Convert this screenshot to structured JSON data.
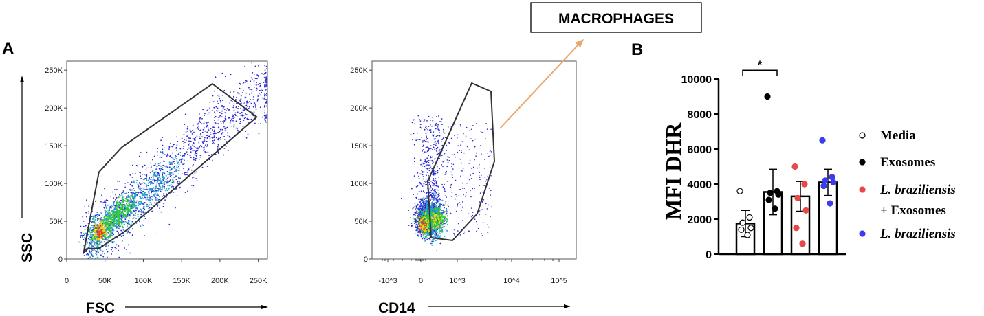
{
  "panels": {
    "a_label": "A",
    "b_label": "B"
  },
  "callout": {
    "label": "MACROPHAGES"
  },
  "chart_data": [
    {
      "type": "scatter",
      "panel": "A",
      "xlabel": "FSC",
      "ylabel": "SSC",
      "xlim": [
        0,
        262
      ],
      "ylim": [
        0,
        262
      ],
      "x_ticks": [
        "0",
        "50K",
        "100K",
        "150K",
        "200K",
        "250K"
      ],
      "y_ticks": [
        "0",
        "50K",
        "100K",
        "150K",
        "200K",
        "250K"
      ],
      "gate_polygon_k": [
        [
          22,
          8
        ],
        [
          42,
          115
        ],
        [
          72,
          148
        ],
        [
          190,
          232
        ],
        [
          248,
          188
        ],
        [
          78,
          38
        ],
        [
          42,
          14
        ],
        [
          28,
          14
        ]
      ],
      "colors": {
        "sparse": "#2a2ad8",
        "mid": "#22a8c8",
        "dense": "#32c832",
        "peak": "#f4d21e",
        "core": "#e83a1e",
        "gate": "#333333"
      }
    },
    {
      "type": "scatter",
      "panel": "A",
      "xlabel": "CD14",
      "x_ticks": [
        "-10^3",
        "0",
        "10^3",
        "10^4",
        "10^5"
      ],
      "y_ticks": [
        "0",
        "50K",
        "100K",
        "150K",
        "200K",
        "250K"
      ],
      "ylim": [
        0,
        262
      ],
      "gate_label": "MACROPHAGES"
    },
    {
      "type": "bar",
      "panel": "B",
      "ylabel": "MFI DHR",
      "ylim": [
        0,
        10000
      ],
      "y_ticks": [
        "0",
        "2000",
        "4000",
        "6000",
        "8000",
        "10000"
      ],
      "categories": [
        "Media",
        "Exosomes",
        "L. braziliensis + Exosomes",
        "L. braziliensis"
      ],
      "values": [
        1750,
        3550,
        3300,
        4100
      ],
      "errors": [
        750,
        1300,
        850,
        750
      ],
      "points": [
        [
          3600,
          2100,
          1800,
          1500,
          1400,
          1100
        ],
        [
          9000,
          3600,
          3500,
          3400,
          3100,
          2600
        ],
        [
          5000,
          4000,
          3200,
          2500,
          1500,
          600
        ],
        [
          6500,
          4400,
          4200,
          4100,
          3900,
          2900
        ]
      ],
      "point_colors": [
        "#ffffff",
        "#000000",
        "#e84848",
        "#3c3ce8"
      ],
      "significance": {
        "label": "*",
        "between": [
          0,
          1
        ]
      },
      "legend": [
        {
          "label": "Media",
          "color": "#ffffff",
          "hollow": true
        },
        {
          "label": "Exosomes",
          "color": "#000000"
        },
        {
          "label_italic": "L. braziliensis",
          "label_rest": "+ Exosomes",
          "color": "#e84848"
        },
        {
          "label_italic": "L. braziliensis",
          "color": "#3c3ce8"
        }
      ]
    }
  ]
}
